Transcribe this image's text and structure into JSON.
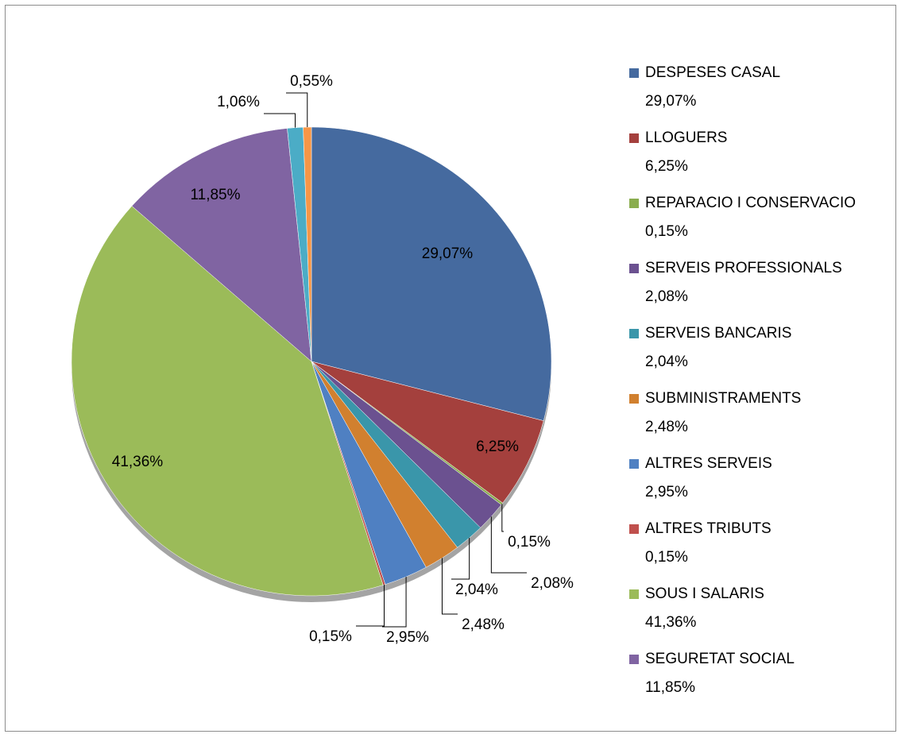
{
  "chart_data": {
    "type": "pie",
    "categories": [
      "DESPESES CASAL",
      "LLOGUERS",
      "REPARACIO I CONSERVACIO",
      "SERVEIS PROFESSIONALS",
      "SERVEIS BANCARIS",
      "SUBMINISTRAMENTS",
      "ALTRES SERVEIS",
      "ALTRES TRIBUTS",
      "SOUS I SALARIS",
      "SEGURETAT SOCIAL",
      null,
      null
    ],
    "values": [
      29.07,
      6.25,
      0.15,
      2.08,
      2.04,
      2.48,
      2.95,
      0.15,
      41.36,
      11.85,
      1.06,
      0.55
    ],
    "value_labels": [
      "29,07%",
      "6,25%",
      "0,15%",
      "2,08%",
      "2,04%",
      "2,48%",
      "2,95%",
      "0,15%",
      "41,36%",
      "11,85%",
      "1,06%",
      "0,55%"
    ],
    "colors": [
      "#456a9f",
      "#a4403d",
      "#8aad4f",
      "#6b5190",
      "#3a96aa",
      "#d1802f",
      "#4f80c2",
      "#c0504d",
      "#9bbb59",
      "#8064a2",
      "#4bacc6",
      "#f79646"
    ],
    "legend": "right"
  }
}
